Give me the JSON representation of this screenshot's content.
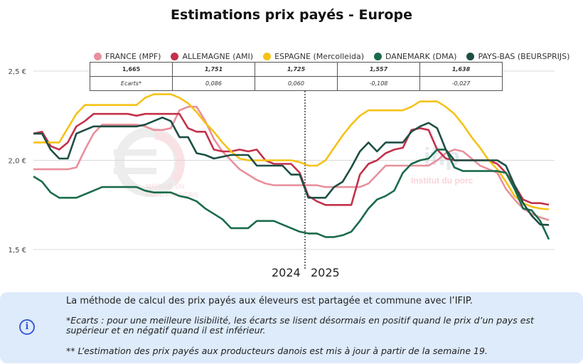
{
  "title": "Estimations prix payés - Europe",
  "chart_data": {
    "type": "line",
    "title": "Estimations prix payés - Europe",
    "xlabel": "",
    "ylabel": "",
    "ylim": [
      1.5,
      2.5
    ],
    "yticks": [
      "2,5 €",
      "2,0 €",
      "1,5 €"
    ],
    "ytick_values": [
      2.5,
      2.0,
      1.5
    ],
    "grid": true,
    "year_labels": [
      "2024",
      "2025"
    ],
    "year_split_index": 30,
    "legend_position": "top",
    "series": [
      {
        "name": "FRANCE (MPF)",
        "color": "#e8909c",
        "values": [
          1.95,
          1.95,
          1.95,
          1.95,
          1.95,
          1.96,
          2.06,
          2.15,
          2.2,
          2.2,
          2.2,
          2.2,
          2.2,
          2.19,
          2.17,
          2.17,
          2.18,
          2.28,
          2.3,
          2.3,
          2.22,
          2.12,
          2.05,
          2.0,
          1.95,
          1.92,
          1.89,
          1.87,
          1.86,
          1.86,
          1.86,
          1.86,
          1.86,
          1.86,
          1.85,
          1.85,
          1.85,
          1.85,
          1.85,
          1.87,
          1.92,
          1.97,
          1.97,
          1.97,
          1.97,
          1.97,
          1.97,
          2.0,
          2.04,
          2.06,
          2.05,
          2.01,
          1.97,
          1.95,
          1.93,
          1.84,
          1.78,
          1.73,
          1.7,
          1.68,
          1.665
        ]
      },
      {
        "name": "ALLEMAGNE (AMI)",
        "color": "#c4314b",
        "values": [
          2.15,
          2.16,
          2.08,
          2.06,
          2.1,
          2.19,
          2.22,
          2.26,
          2.26,
          2.26,
          2.26,
          2.26,
          2.25,
          2.26,
          2.26,
          2.26,
          2.26,
          2.26,
          2.18,
          2.16,
          2.16,
          2.06,
          2.05,
          2.05,
          2.06,
          2.05,
          2.06,
          2.0,
          1.98,
          1.98,
          1.98,
          1.93,
          1.8,
          1.77,
          1.75,
          1.75,
          1.75,
          1.75,
          1.92,
          1.98,
          2.0,
          2.04,
          2.06,
          2.07,
          2.17,
          2.18,
          2.17,
          2.06,
          2.01,
          2.0,
          2.0,
          2.0,
          2.0,
          2.0,
          1.98,
          1.93,
          1.86,
          1.78,
          1.76,
          1.76,
          1.751
        ]
      },
      {
        "name": "ESPAGNE (Mercolleida)",
        "color": "#f5c218",
        "values": [
          2.1,
          2.1,
          2.1,
          2.1,
          2.18,
          2.26,
          2.31,
          2.31,
          2.31,
          2.31,
          2.31,
          2.31,
          2.31,
          2.35,
          2.37,
          2.37,
          2.37,
          2.35,
          2.32,
          2.27,
          2.21,
          2.16,
          2.1,
          2.05,
          2.01,
          2.0,
          2.0,
          2.0,
          2.0,
          2.0,
          2.0,
          1.99,
          1.97,
          1.97,
          2.0,
          2.07,
          2.14,
          2.2,
          2.25,
          2.28,
          2.28,
          2.28,
          2.28,
          2.28,
          2.3,
          2.33,
          2.33,
          2.33,
          2.3,
          2.26,
          2.2,
          2.13,
          2.07,
          2.0,
          1.95,
          1.88,
          1.8,
          1.76,
          1.74,
          1.73,
          1.725
        ]
      },
      {
        "name": "DANEMARK (DMA)",
        "color": "#1a6b4a",
        "values": [
          1.91,
          1.88,
          1.82,
          1.79,
          1.79,
          1.79,
          1.81,
          1.83,
          1.85,
          1.85,
          1.85,
          1.85,
          1.85,
          1.83,
          1.82,
          1.82,
          1.82,
          1.8,
          1.79,
          1.77,
          1.73,
          1.7,
          1.67,
          1.62,
          1.62,
          1.62,
          1.66,
          1.66,
          1.66,
          1.64,
          1.62,
          1.6,
          1.59,
          1.59,
          1.57,
          1.57,
          1.58,
          1.6,
          1.66,
          1.73,
          1.78,
          1.8,
          1.83,
          1.93,
          1.98,
          2.0,
          2.01,
          2.06,
          2.06,
          1.96,
          1.94,
          1.94,
          1.94,
          1.94,
          1.94,
          1.93,
          1.84,
          1.73,
          1.72,
          1.66,
          1.557
        ]
      },
      {
        "name": "PAYS-BAS (BEURSPRIJS)",
        "color": "#1d4f44",
        "values": [
          2.15,
          2.15,
          2.06,
          2.01,
          2.01,
          2.15,
          2.17,
          2.19,
          2.19,
          2.19,
          2.19,
          2.19,
          2.19,
          2.2,
          2.22,
          2.24,
          2.22,
          2.13,
          2.13,
          2.04,
          2.03,
          2.01,
          2.02,
          2.03,
          2.03,
          2.03,
          1.97,
          1.97,
          1.97,
          1.97,
          1.92,
          1.92,
          1.79,
          1.79,
          1.79,
          1.85,
          1.88,
          1.96,
          2.05,
          2.1,
          2.05,
          2.1,
          2.1,
          2.1,
          2.16,
          2.19,
          2.21,
          2.18,
          2.06,
          2.0,
          2.0,
          2.0,
          2.0,
          2.0,
          2.0,
          1.97,
          1.86,
          1.76,
          1.69,
          1.64,
          1.638
        ]
      }
    ],
    "table": {
      "values": [
        "1,665",
        "1,751",
        "1,725",
        "1,557",
        "1,638"
      ],
      "row2_label": "Ecarts*",
      "ecarts": [
        "0,086",
        "0,060",
        "-0,108",
        "-0,027"
      ]
    },
    "watermarks": [
      "MARCHÉ DU PORC FRANÇAIS",
      "ifip",
      "Institut du porc"
    ]
  },
  "notes": {
    "icon": "info-icon",
    "line1": "La méthode de calcul des prix payés aux éleveurs est partagée et commune avec l’IFIP.",
    "line2": "*Ecarts : pour une meilleure lisibilité, les écarts se lisent désormais en positif quand le prix d’un pays est supérieur et en négatif quand il est inférieur.",
    "line3": "** L’estimation des prix payés aux producteurs danois est mis à jour à partir de la semaine 19."
  }
}
